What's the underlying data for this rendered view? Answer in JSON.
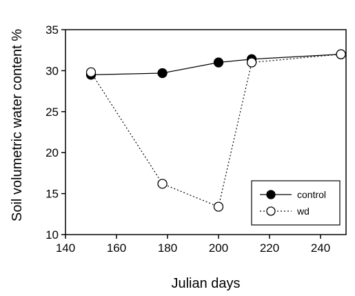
{
  "chart_data": {
    "type": "line",
    "xlabel": "Julian days",
    "ylabel": "Soil volumetric water content %",
    "xlim": [
      140,
      250
    ],
    "ylim": [
      10,
      35
    ],
    "x_ticks": [
      140,
      160,
      180,
      200,
      220,
      240
    ],
    "y_ticks": [
      10,
      15,
      20,
      25,
      30,
      35
    ],
    "grid": false,
    "legend_position": "bottom-right",
    "series": [
      {
        "name": "control",
        "marker": "filled-circle",
        "line_style": "solid",
        "x": [
          150,
          178,
          200,
          213,
          248
        ],
        "y": [
          29.5,
          29.7,
          31.0,
          31.4,
          32.0
        ]
      },
      {
        "name": "wd",
        "marker": "open-circle",
        "line_style": "dotted",
        "x": [
          150,
          178,
          200,
          213,
          248
        ],
        "y": [
          29.8,
          16.2,
          13.4,
          31.0,
          32.0
        ]
      }
    ]
  }
}
